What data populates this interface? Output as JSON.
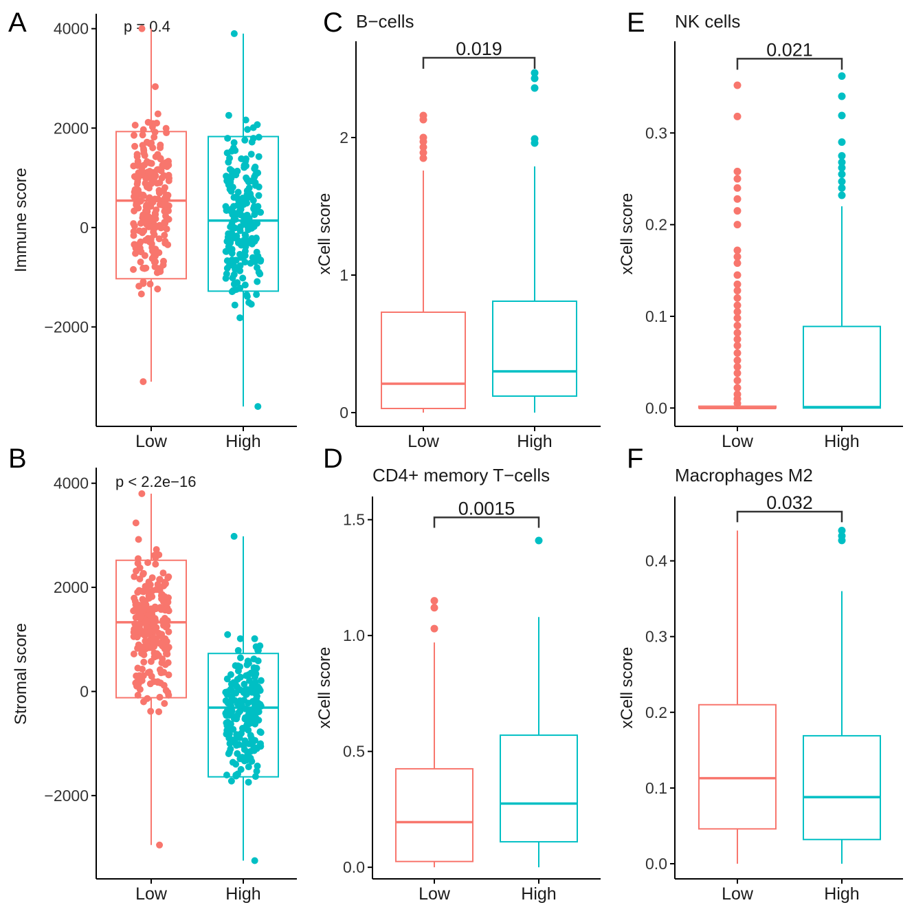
{
  "colors": {
    "low": "#F8766D",
    "high": "#00BFC4",
    "axis": "#000000",
    "bracket": "#333333"
  },
  "chart_data": [
    {
      "id": "A",
      "panel_label": "A",
      "type": "box+jitter",
      "title": "",
      "ylabel": "Immune score",
      "categories": [
        "Low",
        "High"
      ],
      "ylim": [
        -4000,
        4300
      ],
      "yticks": [
        -2000,
        0,
        2000,
        4000
      ],
      "ytick_labels": [
        "−2000",
        "0",
        "2000",
        "4000"
      ],
      "stat": {
        "text": "p = 0.4",
        "kind": "global"
      },
      "boxes": [
        {
          "name": "Low",
          "q1": -1030,
          "median": 540,
          "q3": 1930,
          "whisker_low": -3100,
          "whisker_high": 4000
        },
        {
          "name": "High",
          "q1": -1280,
          "median": 140,
          "q3": 1830,
          "whisker_low": -3600,
          "whisker_high": 3900
        }
      ],
      "jitter": [
        {
          "name": "Low",
          "n": 230,
          "min": -3100,
          "max": 4000,
          "center": 500,
          "spread": 1650,
          "seed": 11
        },
        {
          "name": "High",
          "n": 200,
          "min": -3600,
          "max": 3900,
          "center": 200,
          "spread": 1750,
          "seed": 29
        }
      ]
    },
    {
      "id": "B",
      "panel_label": "B",
      "type": "box+jitter",
      "title": "",
      "ylabel": "Stromal score",
      "categories": [
        "Low",
        "High"
      ],
      "ylim": [
        -3600,
        4300
      ],
      "yticks": [
        -2000,
        0,
        2000,
        4000
      ],
      "ytick_labels": [
        "−2000",
        "0",
        "2000",
        "4000"
      ],
      "stat": {
        "text": "p < 2.2e−16",
        "kind": "global"
      },
      "boxes": [
        {
          "name": "Low",
          "q1": -120,
          "median": 1330,
          "q3": 2520,
          "whisker_low": -2950,
          "whisker_high": 3800
        },
        {
          "name": "High",
          "q1": -1640,
          "median": -310,
          "q3": 730,
          "whisker_low": -3250,
          "whisker_high": 2980
        }
      ],
      "jitter": [
        {
          "name": "Low",
          "n": 230,
          "min": -2950,
          "max": 3800,
          "center": 1250,
          "spread": 1500,
          "seed": 5
        },
        {
          "name": "High",
          "n": 200,
          "min": -3250,
          "max": 2980,
          "center": -400,
          "spread": 1300,
          "seed": 17
        }
      ]
    },
    {
      "id": "C",
      "panel_label": "C",
      "type": "box",
      "title": "B−cells",
      "ylabel": "xCell score",
      "categories": [
        "Low",
        "High"
      ],
      "ylim": [
        -0.1,
        2.7
      ],
      "yticks": [
        0,
        1,
        2
      ],
      "ytick_labels": [
        "0",
        "1",
        "2"
      ],
      "stat": {
        "text": "0.019",
        "kind": "bracket",
        "y": 2.58,
        "drop": 0.08
      },
      "boxes": [
        {
          "name": "Low",
          "q1": 0.03,
          "median": 0.21,
          "q3": 0.73,
          "whisker_low": 0.0,
          "whisker_high": 1.76
        },
        {
          "name": "High",
          "q1": 0.12,
          "median": 0.3,
          "q3": 0.81,
          "whisker_low": 0.0,
          "whisker_high": 1.79
        }
      ],
      "outliers": [
        {
          "name": "Low",
          "values": [
            1.85,
            1.89,
            1.93,
            1.97,
            2.0,
            2.13,
            2.16
          ]
        },
        {
          "name": "High",
          "values": [
            1.96,
            1.99,
            2.36,
            2.43,
            2.47
          ]
        }
      ]
    },
    {
      "id": "D",
      "panel_label": "D",
      "type": "box",
      "title": "CD4+ memory T−cells",
      "ylabel": "xCell score",
      "categories": [
        "Low",
        "High"
      ],
      "ylim": [
        -0.05,
        1.6
      ],
      "yticks": [
        0.0,
        0.5,
        1.0,
        1.5
      ],
      "ytick_labels": [
        "0.0",
        "0.5",
        "1.0",
        "1.5"
      ],
      "stat": {
        "text": "0.0015",
        "kind": "bracket",
        "y": 1.51,
        "drop": 0.045
      },
      "boxes": [
        {
          "name": "Low",
          "q1": 0.025,
          "median": 0.195,
          "q3": 0.425,
          "whisker_low": 0.0,
          "whisker_high": 0.97
        },
        {
          "name": "High",
          "q1": 0.11,
          "median": 0.275,
          "q3": 0.57,
          "whisker_low": 0.0,
          "whisker_high": 1.08
        }
      ],
      "outliers": [
        {
          "name": "Low",
          "values": [
            1.03,
            1.12,
            1.15
          ]
        },
        {
          "name": "High",
          "values": [
            1.41
          ]
        }
      ]
    },
    {
      "id": "E",
      "panel_label": "E",
      "type": "box",
      "title": "NK cells",
      "ylabel": "xCell score",
      "categories": [
        "Low",
        "High"
      ],
      "ylim": [
        -0.02,
        0.4
      ],
      "yticks": [
        0.0,
        0.1,
        0.2,
        0.3
      ],
      "ytick_labels": [
        "0.0",
        "0.1",
        "0.2",
        "0.3"
      ],
      "stat": {
        "text": "0.021",
        "kind": "bracket",
        "y": 0.381,
        "drop": 0.012
      },
      "boxes": [
        {
          "name": "Low",
          "q1": 0.0,
          "median": 0.0,
          "q3": 0.002,
          "whisker_low": 0.0,
          "whisker_high": 0.002
        },
        {
          "name": "High",
          "q1": 0.0,
          "median": 0.001,
          "q3": 0.089,
          "whisker_low": 0.0,
          "whisker_high": 0.22
        }
      ],
      "outliers": [
        {
          "name": "Low",
          "values": [
            0.005,
            0.01,
            0.015,
            0.022,
            0.03,
            0.038,
            0.045,
            0.052,
            0.06,
            0.068,
            0.075,
            0.082,
            0.09,
            0.098,
            0.105,
            0.112,
            0.12,
            0.128,
            0.135,
            0.145,
            0.158,
            0.165,
            0.172,
            0.2,
            0.215,
            0.228,
            0.24,
            0.25,
            0.258,
            0.318,
            0.352
          ]
        },
        {
          "name": "High",
          "values": [
            0.232,
            0.24,
            0.247,
            0.255,
            0.262,
            0.268,
            0.275,
            0.29,
            0.319,
            0.34,
            0.362
          ]
        }
      ]
    },
    {
      "id": "F",
      "panel_label": "F",
      "type": "box",
      "title": "Macrophages M2",
      "ylabel": "xCell score",
      "categories": [
        "Low",
        "High"
      ],
      "ylim": [
        -0.02,
        0.485
      ],
      "yticks": [
        0.0,
        0.1,
        0.2,
        0.3,
        0.4
      ],
      "ytick_labels": [
        "0.0",
        "0.1",
        "0.2",
        "0.3",
        "0.4"
      ],
      "stat": {
        "text": "0.032",
        "kind": "bracket",
        "y": 0.465,
        "drop": 0.014
      },
      "boxes": [
        {
          "name": "Low",
          "q1": 0.046,
          "median": 0.113,
          "q3": 0.21,
          "whisker_low": 0.0,
          "whisker_high": 0.44
        },
        {
          "name": "High",
          "q1": 0.032,
          "median": 0.088,
          "q3": 0.169,
          "whisker_low": 0.0,
          "whisker_high": 0.36
        }
      ],
      "outliers": [
        {
          "name": "Low",
          "values": []
        },
        {
          "name": "High",
          "values": [
            0.427,
            0.433,
            0.44
          ]
        }
      ]
    }
  ]
}
